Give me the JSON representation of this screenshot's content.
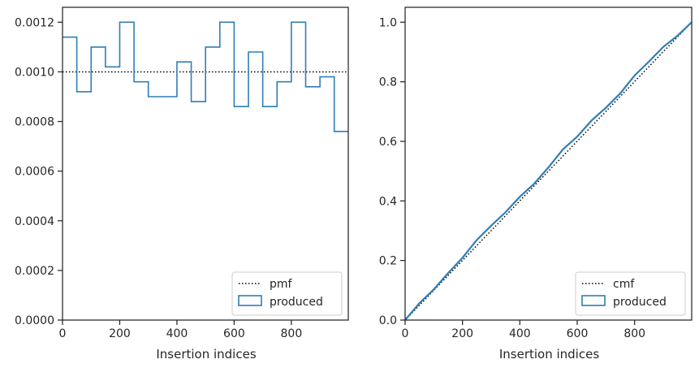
{
  "chart_data": [
    {
      "type": "histogram-step",
      "title": "",
      "xlabel": "Insertion indices",
      "ylabel": "",
      "xlim": [
        0,
        999
      ],
      "ylim": [
        0,
        0.00126
      ],
      "xticks": [
        0,
        200,
        400,
        600,
        800
      ],
      "xtick_labels": [
        "0",
        "200",
        "400",
        "600",
        "800"
      ],
      "yticks": [
        0,
        0.0002,
        0.0004,
        0.0006,
        0.0008,
        0.001,
        0.0012
      ],
      "ytick_labels": [
        "0.0000",
        "0.0002",
        "0.0004",
        "0.0006",
        "0.0008",
        "0.0010",
        "0.0012"
      ],
      "grid": false,
      "legend_position": "lower-right",
      "reference": {
        "name": "pmf",
        "style": "dotted",
        "color": "#000000",
        "value": 0.001
      },
      "series": [
        {
          "name": "produced",
          "color": "#2e7fb4",
          "bin_edges": [
            0,
            50,
            100,
            150,
            200,
            250,
            300,
            350,
            400,
            450,
            500,
            550,
            600,
            650,
            700,
            750,
            800,
            850,
            900,
            950,
            999
          ],
          "values": [
            0.00114,
            0.00092,
            0.0011,
            0.00102,
            0.0012,
            0.00096,
            0.0009,
            0.0009,
            0.00104,
            0.00088,
            0.0011,
            0.0012,
            0.00086,
            0.00108,
            0.00086,
            0.00096,
            0.0012,
            0.00094,
            0.00098,
            0.00076
          ]
        }
      ]
    },
    {
      "type": "line",
      "title": "",
      "xlabel": "Insertion indices",
      "ylabel": "",
      "xlim": [
        0,
        999
      ],
      "ylim": [
        0,
        1.05
      ],
      "xticks": [
        0,
        200,
        400,
        600,
        800
      ],
      "xtick_labels": [
        "0",
        "200",
        "400",
        "600",
        "800"
      ],
      "yticks": [
        0,
        0.2,
        0.4,
        0.6,
        0.8,
        1.0
      ],
      "ytick_labels": [
        "0.0",
        "0.2",
        "0.4",
        "0.6",
        "0.8",
        "1.0"
      ],
      "grid": false,
      "legend_position": "lower-right",
      "reference": {
        "name": "cmf",
        "style": "dotted",
        "color": "#000000",
        "points": [
          [
            0,
            0
          ],
          [
            999,
            1.0
          ]
        ]
      },
      "series": [
        {
          "name": "produced",
          "color": "#2e7fb4",
          "x": [
            0,
            50,
            100,
            150,
            200,
            250,
            300,
            350,
            400,
            450,
            500,
            550,
            600,
            650,
            700,
            750,
            800,
            850,
            900,
            950,
            999
          ],
          "y": [
            0,
            0.057,
            0.103,
            0.158,
            0.209,
            0.269,
            0.317,
            0.362,
            0.414,
            0.458,
            0.513,
            0.573,
            0.616,
            0.67,
            0.713,
            0.761,
            0.821,
            0.868,
            0.917,
            0.955,
            1.0
          ]
        }
      ]
    }
  ]
}
